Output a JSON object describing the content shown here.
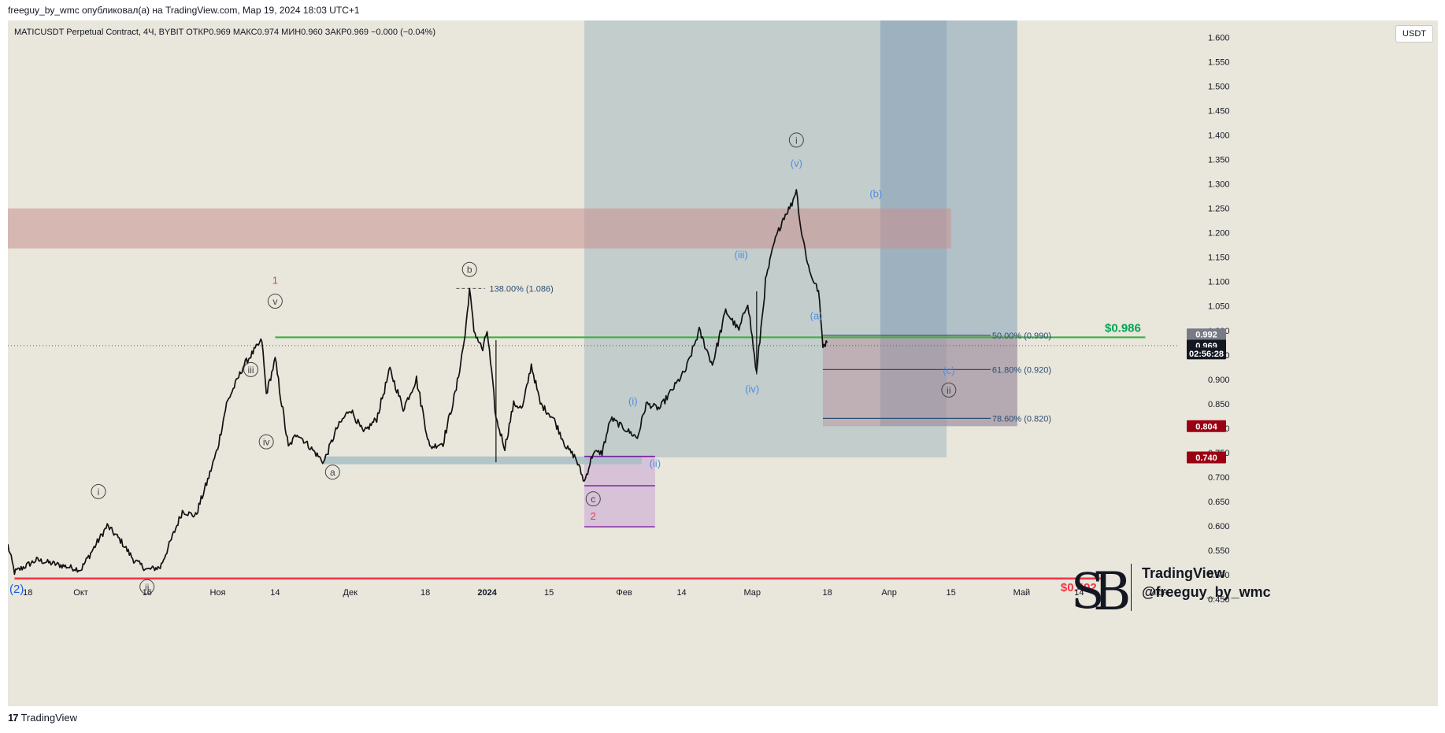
{
  "header": {
    "published": "freeguy_by_wmc опубликовал(а) на TradingView.com, Мар 19, 2024 18:03 UTC+1",
    "symbol_line": "MATICUSDT Perpetual Contract, 4Ч, BYBIT  ОТКР0.969  МАКС0.974  МИН0.960  ЗАКР0.969  −0.000 (−0.04%)",
    "currency": "USDT"
  },
  "footer": {
    "brand": "TradingView"
  },
  "watermark": {
    "line1": "TradingView",
    "line2": "@freeguy_by_wmc"
  },
  "chart_data": {
    "type": "candlestick",
    "symbol": "MATICUSDT Perpetual Contract",
    "timeframe": "4Ч",
    "exchange": "BYBIT",
    "ohlc": {
      "open": 0.969,
      "high": 0.974,
      "low": 0.96,
      "close": 0.969,
      "change": "−0.000 (−0.04%)"
    },
    "y_axis": {
      "ticks": [
        1.6,
        1.55,
        1.5,
        1.45,
        1.4,
        1.35,
        1.3,
        1.25,
        1.2,
        1.15,
        1.1,
        1.05,
        1.0,
        0.95,
        0.9,
        0.85,
        0.8,
        0.75,
        0.7,
        0.65,
        0.6,
        0.55,
        0.5,
        0.45
      ],
      "tick_labels": [
        "1.600",
        "1.550",
        "1.500",
        "1.450",
        "1.400",
        "1.350",
        "1.300",
        "1.250",
        "1.200",
        "1.150",
        "1.100",
        "1.050",
        "1.000",
        "0.950",
        "0.900",
        "0.850",
        "0.800",
        "0.750",
        "0.700",
        "0.650",
        "0.600",
        "0.550",
        "0.500",
        "0.450"
      ],
      "range": [
        0.44,
        1.635
      ]
    },
    "x_axis": {
      "ticks": [
        {
          "day": -12,
          "label": "18"
        },
        {
          "day": 0,
          "label": "Окт"
        },
        {
          "day": 15,
          "label": "16"
        },
        {
          "day": 31,
          "label": "Ноя"
        },
        {
          "day": 44,
          "label": "14"
        },
        {
          "day": 61,
          "label": "Дек"
        },
        {
          "day": 78,
          "label": "18"
        },
        {
          "day": 92,
          "label": "2024"
        },
        {
          "day": 106,
          "label": "15"
        },
        {
          "day": 123,
          "label": "Фев"
        },
        {
          "day": 136,
          "label": "14"
        },
        {
          "day": 152,
          "label": "Мар"
        },
        {
          "day": 169,
          "label": "18"
        },
        {
          "day": 183,
          "label": "Апр"
        },
        {
          "day": 197,
          "label": "15"
        },
        {
          "day": 213,
          "label": "Май"
        },
        {
          "day": 226,
          "label": "14"
        },
        {
          "day": 244,
          "label": "Июн"
        }
      ],
      "range": [
        -16.5,
        248.4
      ]
    },
    "price_path": [
      [
        -16.5,
        0.56
      ],
      [
        -15,
        0.505
      ],
      [
        -10,
        0.53
      ],
      [
        -5,
        0.52
      ],
      [
        0,
        0.51
      ],
      [
        4,
        0.57
      ],
      [
        6,
        0.6
      ],
      [
        9,
        0.57
      ],
      [
        12,
        0.53
      ],
      [
        15,
        0.51
      ],
      [
        18,
        0.515
      ],
      [
        20,
        0.56
      ],
      [
        23,
        0.63
      ],
      [
        26,
        0.62
      ],
      [
        29,
        0.7
      ],
      [
        31,
        0.76
      ],
      [
        33,
        0.85
      ],
      [
        35,
        0.89
      ],
      [
        37,
        0.93
      ],
      [
        41,
        0.98
      ],
      [
        42,
        0.87
      ],
      [
        44,
        0.94
      ],
      [
        47,
        0.76
      ],
      [
        49,
        0.79
      ],
      [
        52,
        0.76
      ],
      [
        55,
        0.73
      ],
      [
        58,
        0.8
      ],
      [
        61,
        0.84
      ],
      [
        64,
        0.79
      ],
      [
        67,
        0.82
      ],
      [
        70,
        0.92
      ],
      [
        73,
        0.84
      ],
      [
        76,
        0.9
      ],
      [
        79,
        0.76
      ],
      [
        82,
        0.77
      ],
      [
        85,
        0.88
      ],
      [
        87,
        0.99
      ],
      [
        88,
        1.085
      ],
      [
        89,
        1.0
      ],
      [
        91,
        0.96
      ],
      [
        92,
        1.0
      ],
      [
        94,
        0.82
      ],
      [
        96,
        0.76
      ],
      [
        98,
        0.85
      ],
      [
        100,
        0.84
      ],
      [
        102,
        0.93
      ],
      [
        104,
        0.85
      ],
      [
        107,
        0.82
      ],
      [
        110,
        0.76
      ],
      [
        112,
        0.74
      ],
      [
        114,
        0.69
      ],
      [
        116,
        0.75
      ],
      [
        118,
        0.75
      ],
      [
        120,
        0.82
      ],
      [
        123,
        0.8
      ],
      [
        126,
        0.78
      ],
      [
        128,
        0.85
      ],
      [
        131,
        0.84
      ],
      [
        134,
        0.88
      ],
      [
        137,
        0.92
      ],
      [
        140,
        1.0
      ],
      [
        143,
        0.93
      ],
      [
        146,
        1.04
      ],
      [
        149,
        1.0
      ],
      [
        151,
        1.06
      ],
      [
        153,
        0.91
      ],
      [
        155,
        1.1
      ],
      [
        157,
        1.18
      ],
      [
        159,
        1.23
      ],
      [
        161,
        1.26
      ],
      [
        162,
        1.29
      ],
      [
        163,
        1.21
      ],
      [
        165,
        1.12
      ],
      [
        167,
        1.08
      ],
      [
        168,
        0.97
      ],
      [
        169,
        0.975
      ]
    ],
    "current_price": 0.969,
    "labels": [
      {
        "text": "1",
        "day": 44,
        "price": 1.103,
        "color": "#f23645"
      },
      {
        "text": "v",
        "day": 44,
        "price": 1.06,
        "circled": true
      },
      {
        "text": "iii",
        "day": 38.5,
        "price": 0.92,
        "circled": true
      },
      {
        "text": "iv",
        "day": 42,
        "price": 0.772,
        "circled": true
      },
      {
        "text": "a",
        "day": 57,
        "price": 0.71,
        "circled": true
      },
      {
        "text": "b",
        "day": 88,
        "price": 1.125,
        "circled": true
      },
      {
        "text": "c",
        "day": 116,
        "price": 0.655,
        "circled": true
      },
      {
        "text": "2",
        "day": 116,
        "price": 0.62,
        "color": "#f23645"
      },
      {
        "text": "i",
        "day": 4,
        "price": 0.67,
        "circled": true
      },
      {
        "text": "ii",
        "day": 15,
        "price": 0.475,
        "circled": true
      },
      {
        "text": "(2)",
        "day": -14.5,
        "price": 0.47,
        "color": "#1e5ce0",
        "size": 15
      },
      {
        "text": "(i)",
        "day": 125,
        "price": 0.855,
        "color": "#4e8ee6"
      },
      {
        "text": "(ii)",
        "day": 130,
        "price": 0.728,
        "color": "#4e8ee6"
      },
      {
        "text": "(iii)",
        "day": 149.5,
        "price": 1.155,
        "color": "#4e8ee6"
      },
      {
        "text": "(iv)",
        "day": 152,
        "price": 0.88,
        "color": "#4e8ee6"
      },
      {
        "text": "(v)",
        "day": 162,
        "price": 1.342,
        "color": "#4e8ee6"
      },
      {
        "text": "i",
        "day": 162,
        "price": 1.39,
        "circled": true
      },
      {
        "text": "(a)",
        "day": 166.5,
        "price": 1.03,
        "color": "#4e8ee6"
      },
      {
        "text": "(b)",
        "day": 180,
        "price": 1.28,
        "color": "#4e8ee6"
      },
      {
        "text": "(c)",
        "day": 196.5,
        "price": 0.918,
        "color": "#4e8ee6"
      },
      {
        "text": "ii",
        "day": 196.5,
        "price": 0.878,
        "circled": true
      }
    ],
    "levels": [
      {
        "name": "support",
        "price": 0.492,
        "label": "$0.492",
        "color": "#f23645"
      },
      {
        "name": "resistance",
        "price": 0.986,
        "label": "$0.986",
        "color": "#00a651"
      }
    ],
    "fib_annotations": [
      {
        "text": "138.00% (1.086)",
        "price": 1.086
      },
      {
        "text": "50.00% (0.990)",
        "price": 0.99
      },
      {
        "text": "61.80% (0.920)",
        "price": 0.92
      },
      {
        "text": "78.60% (0.820)",
        "price": 0.82
      }
    ],
    "price_tags": [
      {
        "text": "0.992",
        "price": 0.992,
        "bg": "#787b86"
      },
      {
        "text": "0.969",
        "price": 0.969,
        "bg": "#131722"
      },
      {
        "text": "02:56:28",
        "price": 0.953,
        "bg": "#131722"
      },
      {
        "text": "0.804",
        "price": 0.804,
        "bg": "#990012"
      },
      {
        "text": "0.740",
        "price": 0.74,
        "bg": "#990012"
      }
    ]
  }
}
